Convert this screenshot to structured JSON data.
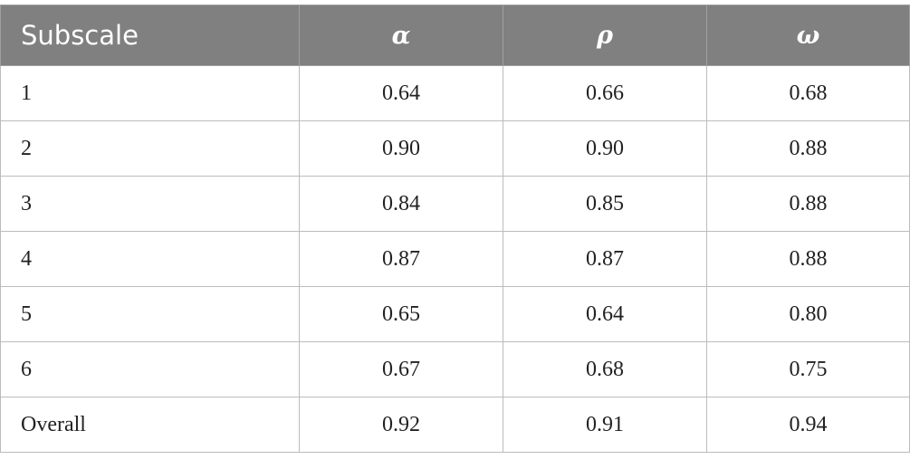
{
  "table": {
    "headers": [
      "Subscale",
      "α",
      "ρ",
      "ω"
    ],
    "rows": [
      {
        "subscale": "1",
        "alpha": "0.64",
        "rho": "0.66",
        "omega": "0.68"
      },
      {
        "subscale": "2",
        "alpha": "0.90",
        "rho": "0.90",
        "omega": "0.88"
      },
      {
        "subscale": "3",
        "alpha": "0.84",
        "rho": "0.85",
        "omega": "0.88"
      },
      {
        "subscale": "4",
        "alpha": "0.87",
        "rho": "0.87",
        "omega": "0.88"
      },
      {
        "subscale": "5",
        "alpha": "0.65",
        "rho": "0.64",
        "omega": "0.80"
      },
      {
        "subscale": "6",
        "alpha": "0.67",
        "rho": "0.68",
        "omega": "0.75"
      },
      {
        "subscale": "Overall",
        "alpha": "0.92",
        "rho": "0.91",
        "omega": "0.94"
      }
    ]
  },
  "colors": {
    "header_bg": "#808080",
    "header_text": "#ffffff",
    "grid": "#bcbcbc",
    "body_text": "#222222"
  }
}
